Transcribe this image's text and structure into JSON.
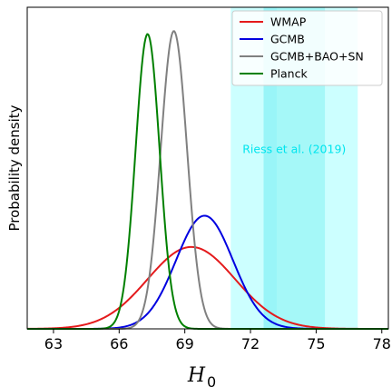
{
  "chart_data": {
    "type": "line",
    "title": "",
    "xlabel": "H",
    "xlabel_sub": "0",
    "ylabel": "Probability density",
    "xlim": [
      61.8,
      78.3
    ],
    "ylim": [
      0,
      1.08
    ],
    "xticks": [
      63,
      66,
      69,
      72,
      75,
      78
    ],
    "yticks_shown": false,
    "grid": false,
    "legend_position": "top-right",
    "bands": [
      {
        "name": "Riess outer",
        "x0": 71.1,
        "x1": 76.9,
        "color": "#ccffff"
      },
      {
        "name": "Riess inner",
        "x0": 72.6,
        "x1": 75.4,
        "color": "#99f5f8"
      },
      {
        "name": "Riess central",
        "x0": 73.2,
        "x1": 75.4,
        "color": "#a5f8f8"
      }
    ],
    "annotation": {
      "text": "Riess et al. (2019)",
      "x": 74.0,
      "y": 0.59,
      "color": "#00e5ee"
    },
    "series": [
      {
        "name": "WMAP",
        "color": "#e41a1c",
        "mean": 69.3,
        "sigma": 2.0,
        "peak": 0.275
      },
      {
        "name": "GCMB",
        "color": "#0000e0",
        "mean": 69.9,
        "sigma": 1.3,
        "peak": 0.38
      },
      {
        "name": "GCMB+BAO+SN",
        "color": "#808080",
        "mean": 68.5,
        "sigma": 0.6,
        "peak": 1.0
      },
      {
        "name": "Planck",
        "color": "#008000",
        "mean": 67.3,
        "sigma": 0.55,
        "peak": 0.99
      }
    ]
  }
}
